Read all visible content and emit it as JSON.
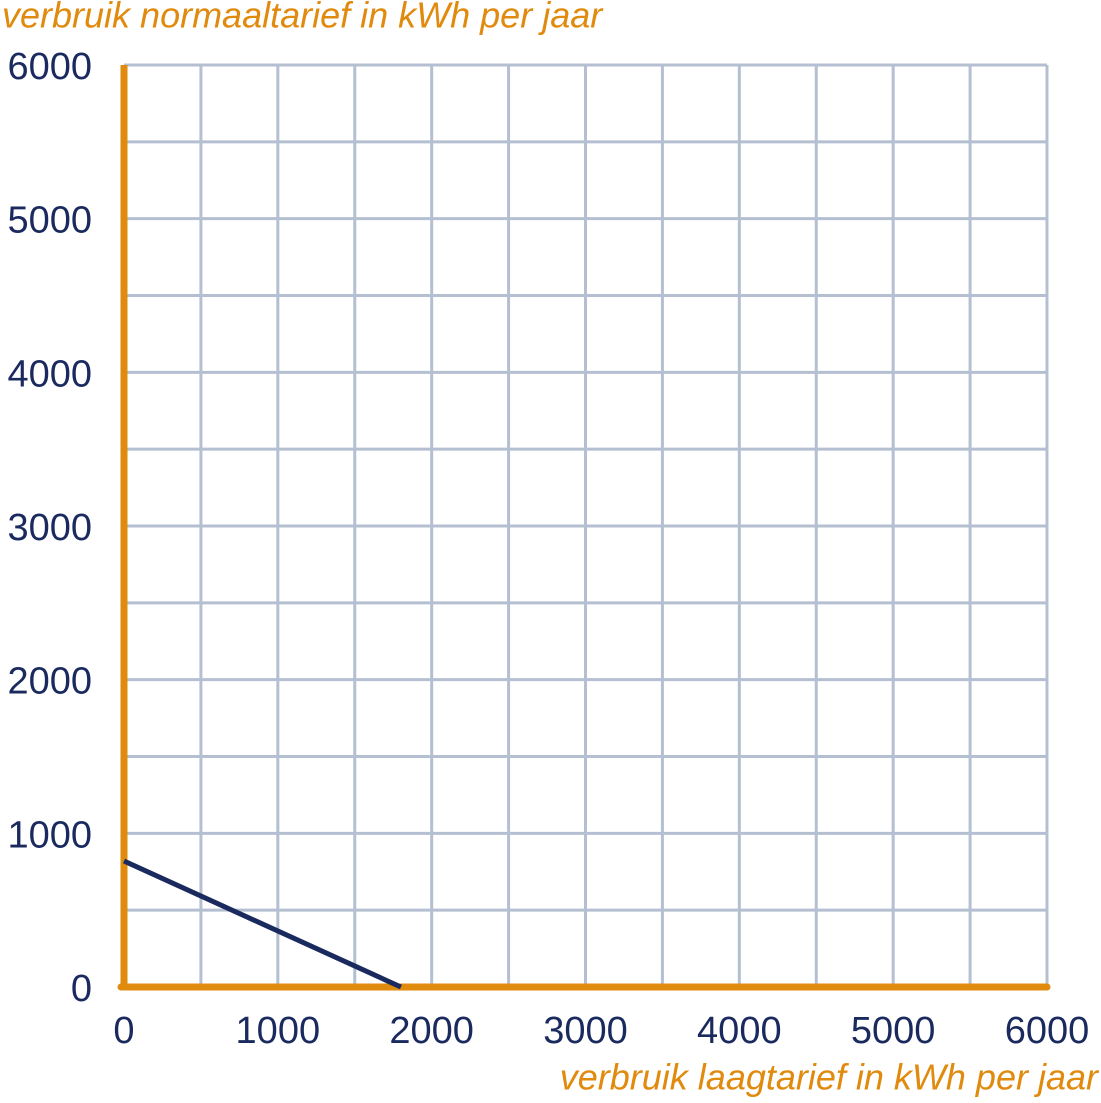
{
  "chart_data": {
    "type": "line",
    "y_title": "verbruik normaaltarief in kWh per jaar",
    "x_title": "verbruik laagtarief in kWh per jaar",
    "series": [
      {
        "color": "#1a2a5e",
        "x": [
          0,
          1800
        ],
        "values": [
          820,
          0
        ]
      }
    ],
    "xlim": [
      0,
      6000
    ],
    "ylim": [
      0,
      6000
    ],
    "xticks": [
      0,
      1000,
      2000,
      3000,
      4000,
      5000,
      6000
    ],
    "yticks": [
      0,
      1000,
      2000,
      3000,
      4000,
      5000,
      6000
    ],
    "grid": true,
    "grid_color": "#b4bfd2",
    "axis_color": "#e08a0e"
  }
}
